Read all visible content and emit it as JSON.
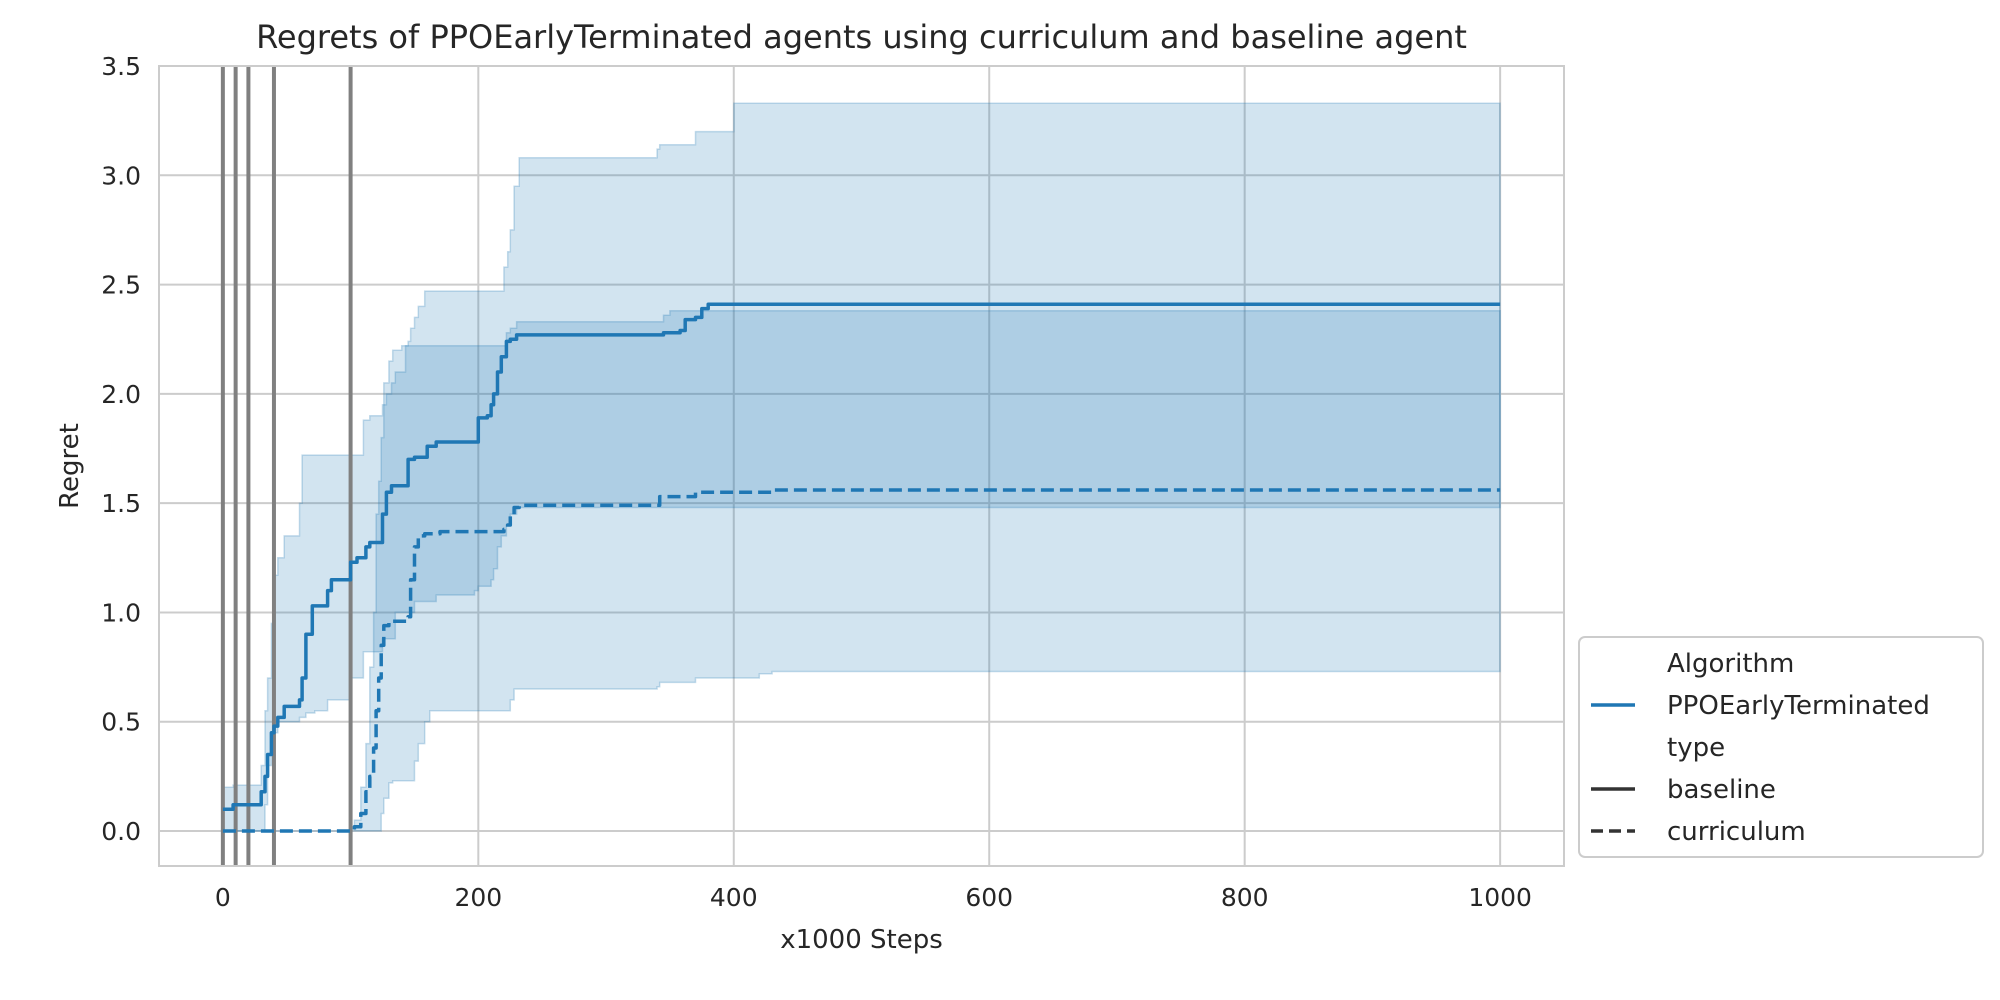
{
  "chart_data": {
    "type": "line",
    "title": "Regrets of PPOEarlyTerminated agents using curriculum and baseline agent",
    "xlabel": "x1000 Steps",
    "ylabel": "Regret",
    "xlim": [
      -50,
      1050
    ],
    "ylim": [
      -0.16,
      3.5
    ],
    "xticks": [
      0,
      200,
      400,
      600,
      800,
      1000
    ],
    "yticks": [
      0.0,
      0.5,
      1.0,
      1.5,
      2.0,
      2.5,
      3.0,
      3.5
    ],
    "xtick_labels": [
      "0",
      "200",
      "400",
      "600",
      "800",
      "1000"
    ],
    "ytick_labels": [
      "0.0",
      "0.5",
      "1.0",
      "1.5",
      "2.0",
      "2.5",
      "3.0",
      "3.5"
    ],
    "grid": true,
    "vlines_x": [
      0,
      10,
      20,
      40,
      100
    ],
    "colors": {
      "series": "#1f77b4",
      "vline": "#808080",
      "grid": "#cccccc",
      "text": "#262626",
      "spine": "#cccccc"
    },
    "legend": {
      "placement": "outside-lower-right",
      "entries": [
        {
          "label": "Algorithm",
          "style": "header"
        },
        {
          "label": "PPOEarlyTerminated",
          "style": "color"
        },
        {
          "label": "type",
          "style": "header"
        },
        {
          "label": "baseline",
          "style": "solid"
        },
        {
          "label": "curriculum",
          "style": "dashed"
        }
      ]
    },
    "series": [
      {
        "name": "baseline",
        "algorithm": "PPOEarlyTerminated",
        "linestyle": "solid",
        "x": [
          0,
          5,
          8,
          10,
          25,
          30,
          33,
          35,
          38,
          40,
          43,
          48,
          55,
          60,
          62,
          65,
          70,
          72,
          75,
          82,
          85,
          88,
          97,
          100,
          105,
          110,
          112,
          115,
          120,
          125,
          128,
          132,
          135,
          143,
          145,
          150,
          158,
          160,
          167,
          170,
          175,
          197,
          200,
          207,
          210,
          212,
          215,
          218,
          222,
          225,
          230,
          340,
          345,
          350,
          358,
          362,
          370,
          375,
          380,
          400,
          600,
          800,
          1000
        ],
        "y": [
          0.1,
          0.1,
          0.12,
          0.12,
          0.12,
          0.18,
          0.25,
          0.35,
          0.45,
          0.48,
          0.52,
          0.57,
          0.57,
          0.6,
          0.7,
          0.9,
          1.03,
          1.03,
          1.03,
          1.1,
          1.15,
          1.15,
          1.15,
          1.23,
          1.25,
          1.25,
          1.3,
          1.32,
          1.32,
          1.45,
          1.55,
          1.58,
          1.58,
          1.58,
          1.7,
          1.71,
          1.71,
          1.76,
          1.78,
          1.78,
          1.78,
          1.78,
          1.89,
          1.9,
          1.95,
          2.0,
          2.1,
          2.17,
          2.24,
          2.25,
          2.27,
          2.27,
          2.28,
          2.28,
          2.29,
          2.34,
          2.35,
          2.39,
          2.41,
          2.41,
          2.41,
          2.41,
          2.41
        ],
        "ci_lower": [
          0.0,
          0.0,
          0.0,
          0.0,
          0.0,
          0.0,
          0.12,
          0.3,
          0.35,
          0.45,
          0.5,
          0.5,
          0.5,
          0.52,
          0.52,
          0.54,
          0.54,
          0.55,
          0.55,
          0.6,
          0.6,
          0.6,
          0.6,
          0.7,
          0.7,
          0.82,
          0.82,
          0.82,
          0.82,
          0.88,
          0.88,
          0.88,
          1.0,
          1.0,
          1.0,
          1.05,
          1.05,
          1.05,
          1.08,
          1.08,
          1.08,
          1.1,
          1.12,
          1.12,
          1.15,
          1.2,
          1.3,
          1.35,
          1.4,
          1.45,
          1.48,
          1.48,
          1.48,
          1.48,
          1.48,
          1.48,
          1.48,
          1.48,
          1.48,
          1.48,
          1.48,
          1.48,
          1.48
        ],
        "ci_upper": [
          0.2,
          0.2,
          0.21,
          0.21,
          0.21,
          0.3,
          0.55,
          0.7,
          0.95,
          1.17,
          1.25,
          1.35,
          1.35,
          1.5,
          1.72,
          1.72,
          1.72,
          1.72,
          1.72,
          1.72,
          1.72,
          1.72,
          1.72,
          1.72,
          1.72,
          1.88,
          1.88,
          1.9,
          1.9,
          1.95,
          2.0,
          2.05,
          2.1,
          2.22,
          2.22,
          2.22,
          2.22,
          2.22,
          2.22,
          2.22,
          2.22,
          2.22,
          2.22,
          2.22,
          2.22,
          2.22,
          2.22,
          2.22,
          2.28,
          2.3,
          2.33,
          2.33,
          2.36,
          2.38,
          2.38,
          2.38,
          2.38,
          2.38,
          2.38,
          2.38,
          2.38,
          2.38,
          2.38
        ]
      },
      {
        "name": "curriculum",
        "algorithm": "PPOEarlyTerminated",
        "linestyle": "dashed",
        "x": [
          0,
          50,
          100,
          103,
          108,
          112,
          115,
          118,
          120,
          122,
          124,
          126,
          130,
          133,
          140,
          145,
          147,
          150,
          153,
          158,
          162,
          170,
          200,
          220,
          223,
          225,
          228,
          232,
          340,
          342,
          370,
          400,
          420,
          430,
          600,
          800,
          1000
        ],
        "y": [
          0.0,
          0.0,
          0.0,
          0.02,
          0.08,
          0.18,
          0.25,
          0.38,
          0.55,
          0.7,
          0.85,
          0.94,
          0.96,
          0.96,
          0.96,
          0.98,
          1.15,
          1.3,
          1.35,
          1.36,
          1.36,
          1.37,
          1.37,
          1.38,
          1.4,
          1.44,
          1.48,
          1.49,
          1.49,
          1.53,
          1.55,
          1.55,
          1.55,
          1.56,
          1.56,
          1.56,
          1.56
        ],
        "ci_lower": [
          0.0,
          0.0,
          0.0,
          0.0,
          0.0,
          0.0,
          0.0,
          0.0,
          0.0,
          0.0,
          0.08,
          0.15,
          0.22,
          0.23,
          0.23,
          0.23,
          0.23,
          0.32,
          0.4,
          0.5,
          0.55,
          0.55,
          0.55,
          0.55,
          0.55,
          0.6,
          0.65,
          0.65,
          0.66,
          0.68,
          0.7,
          0.7,
          0.72,
          0.73,
          0.73,
          0.73,
          0.73
        ],
        "ci_upper": [
          0.0,
          0.0,
          0.0,
          0.05,
          0.2,
          0.4,
          0.75,
          1.0,
          1.45,
          1.6,
          1.8,
          2.05,
          2.15,
          2.2,
          2.22,
          2.24,
          2.3,
          2.35,
          2.4,
          2.47,
          2.47,
          2.47,
          2.47,
          2.58,
          2.65,
          2.75,
          2.95,
          3.08,
          3.12,
          3.14,
          3.2,
          3.33,
          3.33,
          3.33,
          3.33,
          3.33,
          3.33
        ]
      }
    ]
  }
}
